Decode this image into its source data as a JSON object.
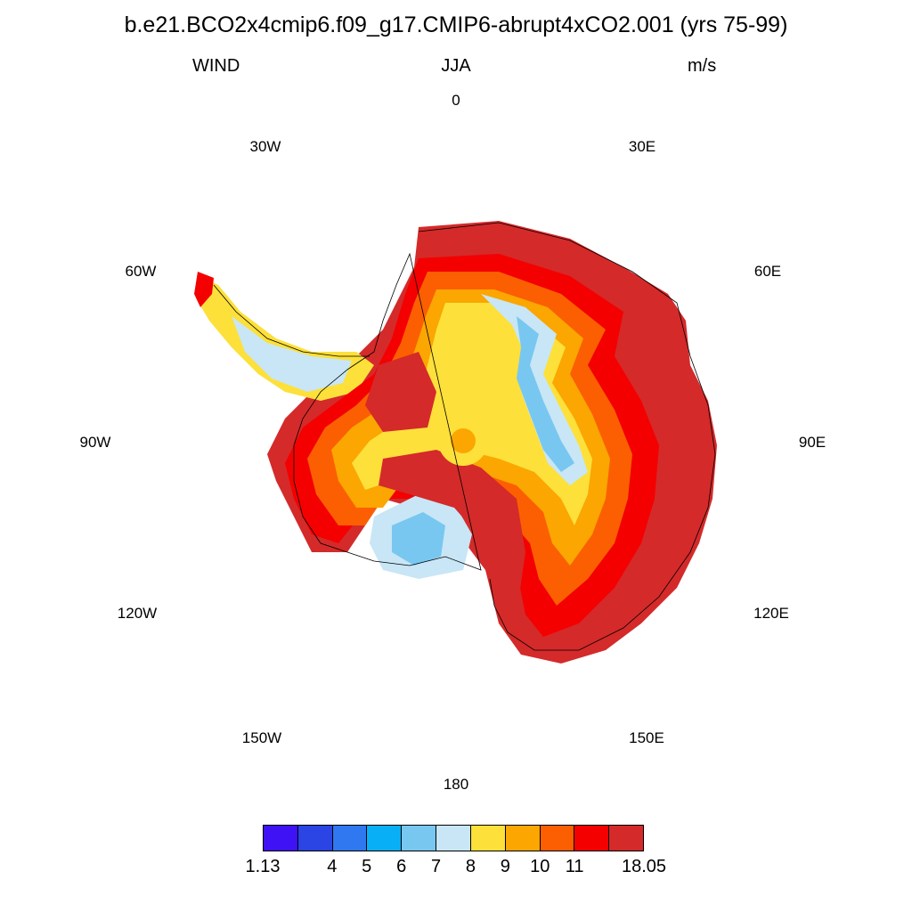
{
  "title": "b.e21.BCO2x4cmip6.f09_g17.CMIP6-abrupt4xCO2.001 (yrs 75-99)",
  "variable": "WIND",
  "season": "JJA",
  "units": "m/s",
  "longitude_labels": [
    {
      "name": "lon-0",
      "text": "0"
    },
    {
      "name": "lon-30e",
      "text": "30E"
    },
    {
      "name": "lon-60e",
      "text": "60E"
    },
    {
      "name": "lon-90e",
      "text": "90E"
    },
    {
      "name": "lon-120e",
      "text": "120E"
    },
    {
      "name": "lon-150e",
      "text": "150E"
    },
    {
      "name": "lon-180",
      "text": "180"
    },
    {
      "name": "lon-150w",
      "text": "150W"
    },
    {
      "name": "lon-120w",
      "text": "120W"
    },
    {
      "name": "lon-90w",
      "text": "90W"
    },
    {
      "name": "lon-60w",
      "text": "60W"
    },
    {
      "name": "lon-30w",
      "text": "30W"
    }
  ],
  "colorbar": {
    "colors": [
      "#3f12f5",
      "#2a45e3",
      "#2f78f0",
      "#08aff7",
      "#78c7f0",
      "#c8e6f5",
      "#fde03a",
      "#fba601",
      "#fb5f01",
      "#f40000",
      "#d42a2a"
    ],
    "labels": [
      "1.13",
      "4",
      "5",
      "6",
      "7",
      "8",
      "9",
      "10",
      "11",
      "18.05"
    ]
  }
}
